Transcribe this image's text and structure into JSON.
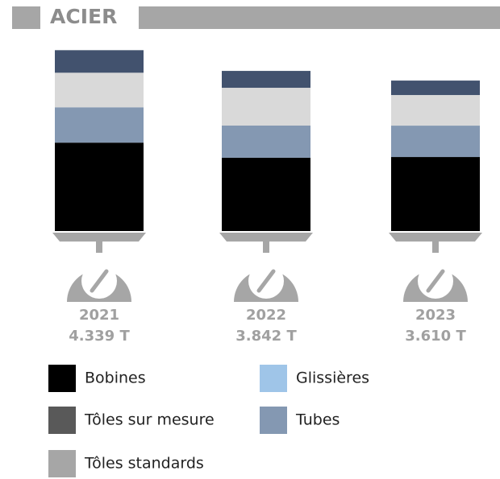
{
  "chart_data": {
    "type": "bar",
    "stacked": true,
    "title": "ACIER",
    "categories": [
      "2021",
      "2022",
      "2023"
    ],
    "totals": [
      4339,
      3842,
      3610
    ],
    "total_labels": [
      "4.339 T",
      "3.842 T",
      "3.610 T"
    ],
    "ylim": [
      0,
      4500
    ],
    "series": [
      {
        "name": "Bobines",
        "color": "#000000",
        "bar_color": "#000000",
        "values": [
          2121,
          1759,
          1776
        ]
      },
      {
        "name": "Tôles sur mesure",
        "color": "#595959",
        "bar_color": "#42526e",
        "values": [
          541,
          405,
          347
        ]
      },
      {
        "name": "Tôles standards",
        "color": "#a6a6a6",
        "bar_color": "#d9d9d9",
        "values": [
          829,
          907,
          734
        ]
      },
      {
        "name": "Glissières",
        "color": "#9fc5e8",
        "bar_color": "#9fc5e8",
        "values": [
          null,
          null,
          null
        ]
      },
      {
        "name": "Tubes",
        "color": "#8498b2",
        "bar_color": "#8498b2",
        "values": [
          848,
          771,
          753
        ]
      }
    ],
    "stack_order": [
      0,
      4,
      2,
      1,
      3
    ]
  }
}
